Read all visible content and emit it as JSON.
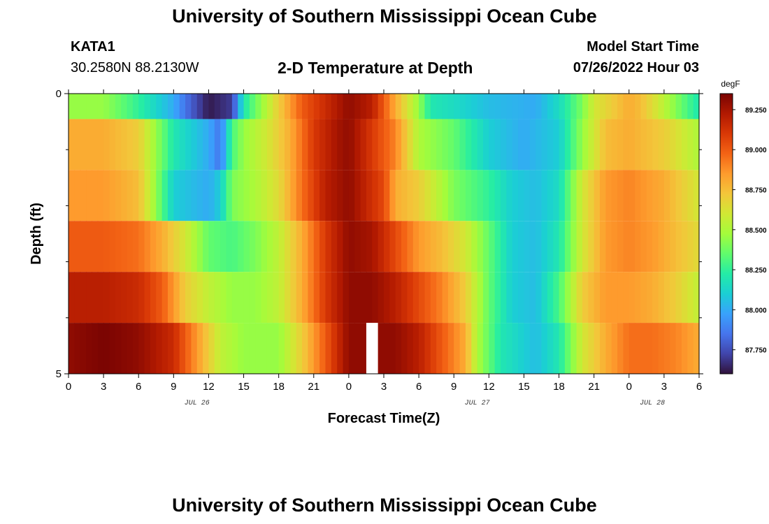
{
  "page": {
    "title": "University of Southern Mississippi Ocean Cube",
    "footer_title": "University of Southern Mississippi Ocean Cube",
    "station": "KATA1",
    "coordinates": "30.2580N  88.2130W",
    "subtitle": "2-D Temperature at Depth",
    "model_start_label": "Model Start Time",
    "model_start_value": "07/26/2022 Hour 03"
  },
  "chart_data": {
    "type": "heatmap",
    "title": "2-D Temperature at Depth",
    "xlabel": "Forecast Time(Z)",
    "ylabel": "Depth (ft)",
    "units": "degF",
    "x_range": [
      0,
      54
    ],
    "x_ticks": [
      0,
      3,
      6,
      9,
      12,
      15,
      18,
      21,
      24,
      27,
      30,
      33,
      36,
      39,
      42,
      45,
      48,
      51,
      54
    ],
    "x_tick_labels": [
      "0",
      "3",
      "6",
      "9",
      "12",
      "15",
      "18",
      "21",
      "0",
      "3",
      "6",
      "9",
      "12",
      "15",
      "18",
      "21",
      "0",
      "3",
      "6"
    ],
    "date_labels": [
      {
        "at": 11,
        "text": "JUL 26"
      },
      {
        "at": 35,
        "text": "JUL 27"
      },
      {
        "at": 50,
        "text": "JUL 28"
      }
    ],
    "y_range": [
      0,
      5
    ],
    "y_ticks": [
      0,
      5
    ],
    "y_tick_labels": [
      "0",
      "5"
    ],
    "y_minor_ticks": [
      1,
      2,
      3,
      4
    ],
    "depth_levels": [
      0,
      1,
      2,
      3,
      4,
      5
    ],
    "missing_data": [
      {
        "x": 26,
        "depth": 5
      }
    ],
    "colorbar": {
      "min": 87.6,
      "max": 89.35,
      "ticks": [
        87.75,
        88.0,
        88.25,
        88.5,
        88.75,
        89.0,
        89.25
      ],
      "tick_labels": [
        "87.750",
        "88.000",
        "88.250",
        "88.500",
        "88.750",
        "89.000",
        "89.250"
      ],
      "colors": [
        "#30123b",
        "#4145ab",
        "#4675ed",
        "#39a2fc",
        "#1bcfd4",
        "#24eca6",
        "#61fc6c",
        "#a4fc3b",
        "#d1e834",
        "#f3c63a",
        "#fe9b2d",
        "#f36315",
        "#d93806",
        "#b11901",
        "#7a0402"
      ]
    },
    "rows": [
      {
        "depth": 0,
        "times": [
          0,
          3,
          6,
          9,
          10,
          12,
          14,
          15,
          18,
          20,
          22,
          24,
          26,
          27,
          28,
          30,
          31,
          33,
          36,
          40,
          42,
          44,
          45,
          48,
          49,
          50,
          53,
          54
        ],
        "values": [
          88.45,
          88.45,
          88.25,
          88.0,
          87.85,
          87.62,
          87.7,
          88.2,
          88.7,
          89.0,
          89.15,
          89.3,
          89.2,
          89.0,
          88.8,
          88.45,
          88.2,
          88.15,
          88.05,
          88.0,
          88.15,
          88.4,
          88.6,
          88.8,
          88.75,
          88.65,
          88.3,
          88.2
        ]
      },
      {
        "depth": 1,
        "times": [
          0,
          3,
          6,
          9,
          12,
          13,
          14,
          15,
          17,
          19,
          21,
          23,
          24,
          26,
          28,
          29,
          30,
          31,
          33,
          36,
          39,
          42,
          44,
          46,
          48,
          51,
          54
        ],
        "values": [
          88.8,
          88.8,
          88.7,
          88.2,
          88.0,
          87.85,
          88.3,
          88.45,
          88.6,
          88.8,
          89.1,
          89.25,
          89.3,
          89.1,
          88.9,
          88.7,
          88.5,
          88.45,
          88.35,
          88.1,
          88.0,
          88.1,
          88.45,
          88.75,
          88.8,
          88.7,
          88.5
        ]
      },
      {
        "depth": 2,
        "times": [
          0,
          3,
          6,
          7,
          9,
          12,
          13,
          14,
          16,
          18,
          20,
          22,
          24,
          27,
          28,
          30,
          32,
          33,
          36,
          38,
          40,
          42,
          44,
          46,
          48,
          51,
          54
        ],
        "values": [
          88.85,
          88.85,
          88.75,
          88.55,
          88.1,
          88.0,
          88.1,
          88.4,
          88.5,
          88.65,
          88.95,
          89.2,
          89.3,
          89.05,
          88.8,
          88.7,
          88.5,
          88.4,
          88.25,
          88.1,
          88.05,
          88.15,
          88.6,
          88.85,
          88.9,
          88.8,
          88.6
        ]
      },
      {
        "depth": 3,
        "times": [
          0,
          3,
          6,
          8,
          10,
          12,
          14,
          16,
          18,
          20,
          22,
          24,
          26,
          28,
          30,
          32,
          34,
          36,
          38,
          40,
          42,
          44,
          46,
          48,
          50,
          52,
          54
        ],
        "values": [
          89.0,
          89.0,
          88.95,
          88.8,
          88.6,
          88.35,
          88.3,
          88.4,
          88.55,
          88.8,
          89.1,
          89.3,
          89.25,
          89.05,
          88.85,
          88.75,
          88.6,
          88.35,
          88.1,
          88.05,
          88.2,
          88.6,
          88.85,
          88.9,
          88.85,
          88.75,
          88.65
        ]
      },
      {
        "depth": 4,
        "times": [
          0,
          3,
          6,
          8,
          9,
          10,
          12,
          14,
          16,
          18,
          20,
          22,
          24,
          26,
          28,
          30,
          32,
          34,
          36,
          38,
          40,
          42,
          44,
          46,
          48,
          50,
          52,
          54
        ],
        "values": [
          89.2,
          89.2,
          89.15,
          89.0,
          88.85,
          88.7,
          88.55,
          88.45,
          88.45,
          88.55,
          88.8,
          89.1,
          89.3,
          89.3,
          89.2,
          89.05,
          88.9,
          88.7,
          88.35,
          88.1,
          88.05,
          88.3,
          88.7,
          88.85,
          88.85,
          88.8,
          88.7,
          88.55
        ]
      },
      {
        "depth": 5,
        "times": [
          0,
          3,
          6,
          9,
          10,
          11,
          12,
          13,
          15,
          18,
          20,
          22,
          24,
          26,
          28,
          30,
          32,
          34,
          35,
          37,
          40,
          42,
          44,
          46,
          48,
          50,
          52,
          54
        ],
        "values": [
          89.3,
          89.35,
          89.3,
          89.15,
          89.0,
          88.85,
          88.7,
          88.55,
          88.45,
          88.45,
          88.7,
          89.0,
          89.3,
          89.3,
          89.3,
          89.2,
          89.0,
          88.8,
          88.5,
          88.2,
          88.05,
          88.2,
          88.6,
          88.8,
          88.95,
          88.95,
          88.9,
          88.8
        ]
      }
    ]
  }
}
